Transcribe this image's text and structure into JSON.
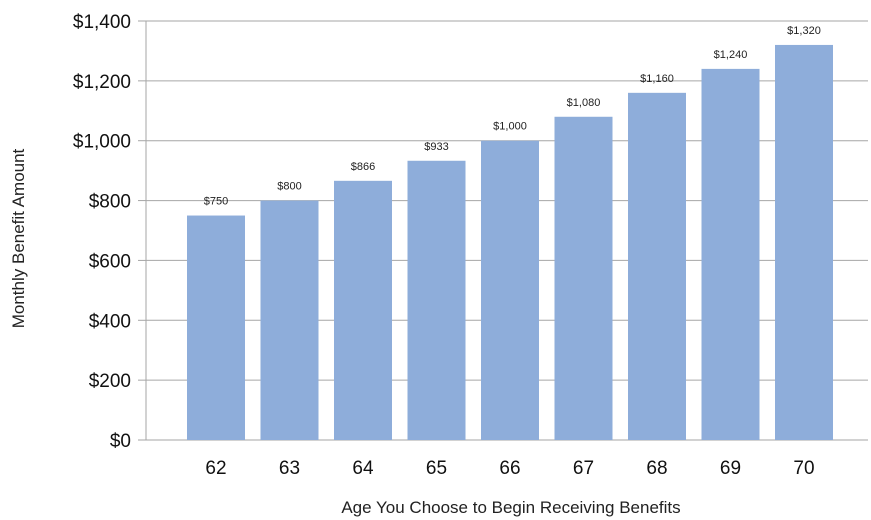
{
  "chart_data": {
    "type": "bar",
    "title": "",
    "xlabel": "Age You Choose to Begin Receiving Benefits",
    "ylabel": "Monthly Benefit Amount",
    "categories": [
      "62",
      "63",
      "64",
      "65",
      "66",
      "67",
      "68",
      "69",
      "70"
    ],
    "values": [
      750,
      800,
      866,
      933,
      1000,
      1080,
      1160,
      1240,
      1320
    ],
    "value_labels": [
      "$750",
      "$800",
      "$866",
      "$933",
      "$1,000",
      "$1,080",
      "$1,160",
      "$1,240",
      "$1,320"
    ],
    "ylim": [
      0,
      1400
    ],
    "yticks": [
      0,
      200,
      400,
      600,
      800,
      1000,
      1200,
      1400
    ],
    "ytick_labels": [
      "$0",
      "$200",
      "$400",
      "$600",
      "$800",
      "$1,000",
      "$1,200",
      "$1,400"
    ],
    "grid": "horizontal",
    "legend": "none",
    "colors": {
      "bar": "#8EADDA",
      "grid": "#a6a6a6",
      "axis": "#a6a6a6"
    }
  }
}
